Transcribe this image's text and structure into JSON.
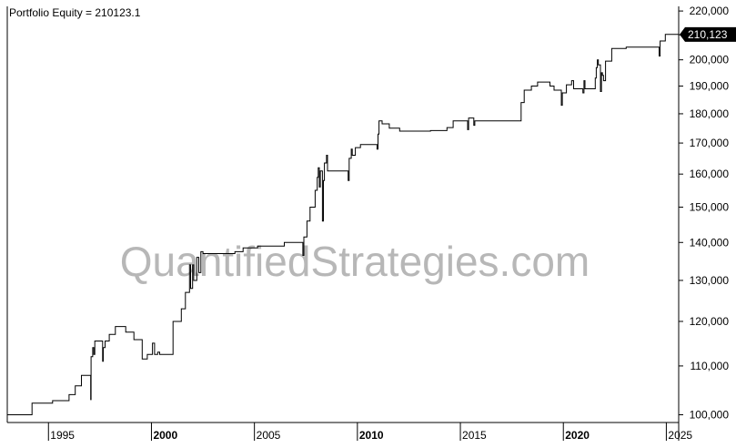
{
  "title": "Portfolio Equity = 210123.1",
  "watermark": "QuantifiedStrategies.com",
  "last_value_label": "210,123",
  "colors": {
    "line": "#000000",
    "axis": "#000000",
    "background": "#ffffff",
    "badge": "#000000",
    "badge_text": "#ffffff"
  },
  "chart_data": {
    "type": "line",
    "title": "Portfolio Equity = 210123.1",
    "xlabel": "",
    "ylabel": "",
    "y_scale": "log",
    "xlim": [
      1993.0,
      2025.6
    ],
    "ylim": [
      98500,
      222000
    ],
    "grid": false,
    "legend": "none",
    "x_ticks": [
      {
        "value": 1995,
        "label": "1995",
        "bold": false
      },
      {
        "value": 2000,
        "label": "2000",
        "bold": true
      },
      {
        "value": 2005,
        "label": "2005",
        "bold": false
      },
      {
        "value": 2010,
        "label": "2010",
        "bold": true
      },
      {
        "value": 2015,
        "label": "2015",
        "bold": false
      },
      {
        "value": 2020,
        "label": "2020",
        "bold": true
      },
      {
        "value": 2025,
        "label": "2025",
        "bold": false
      }
    ],
    "y_ticks": [
      {
        "value": 100000,
        "label": "100,000"
      },
      {
        "value": 110000,
        "label": "110,000"
      },
      {
        "value": 120000,
        "label": "120,000"
      },
      {
        "value": 130000,
        "label": "130,000"
      },
      {
        "value": 140000,
        "label": "140,000"
      },
      {
        "value": 150000,
        "label": "150,000"
      },
      {
        "value": 160000,
        "label": "160,000"
      },
      {
        "value": 170000,
        "label": "170,000"
      },
      {
        "value": 180000,
        "label": "180,000"
      },
      {
        "value": 190000,
        "label": "190,000"
      },
      {
        "value": 200000,
        "label": "200,000"
      },
      {
        "value": 210000,
        "label": "210,000"
      },
      {
        "value": 220000,
        "label": "220,000"
      }
    ],
    "series": [
      {
        "step": true,
        "points": [
          [
            1993.0,
            100000
          ],
          [
            1994.1,
            100000
          ],
          [
            1994.2,
            102300
          ],
          [
            1995.1,
            102300
          ],
          [
            1995.2,
            102800
          ],
          [
            1995.9,
            102800
          ],
          [
            1996.0,
            104000
          ],
          [
            1996.2,
            104000
          ],
          [
            1996.3,
            105800
          ],
          [
            1996.5,
            105800
          ],
          [
            1996.6,
            108000
          ],
          [
            1997.0,
            108000
          ],
          [
            1997.05,
            103000
          ],
          [
            1997.07,
            112000
          ],
          [
            1997.15,
            114000
          ],
          [
            1997.2,
            112500
          ],
          [
            1997.25,
            115500
          ],
          [
            1997.6,
            115500
          ],
          [
            1997.63,
            111000
          ],
          [
            1997.66,
            114000
          ],
          [
            1997.75,
            115500
          ],
          [
            1997.9,
            115500
          ],
          [
            1997.95,
            117000
          ],
          [
            1998.2,
            117000
          ],
          [
            1998.25,
            118800
          ],
          [
            1998.7,
            118800
          ],
          [
            1998.75,
            117500
          ],
          [
            1999.1,
            117500
          ],
          [
            1999.15,
            115800
          ],
          [
            1999.5,
            115800
          ],
          [
            1999.55,
            111500
          ],
          [
            1999.75,
            111500
          ],
          [
            1999.8,
            112500
          ],
          [
            2000.0,
            112500
          ],
          [
            2000.05,
            115000
          ],
          [
            2000.15,
            112500
          ],
          [
            2000.3,
            113000
          ],
          [
            2000.4,
            112500
          ],
          [
            2001.0,
            112500
          ],
          [
            2001.05,
            120000
          ],
          [
            2001.4,
            120000
          ],
          [
            2001.45,
            123000
          ],
          [
            2001.6,
            123000
          ],
          [
            2001.65,
            127000
          ],
          [
            2001.8,
            127000
          ],
          [
            2001.85,
            134000
          ],
          [
            2001.9,
            128000
          ],
          [
            2002.0,
            134000
          ],
          [
            2002.05,
            130000
          ],
          [
            2002.2,
            136000
          ],
          [
            2002.3,
            132000
          ],
          [
            2002.4,
            137500
          ],
          [
            2002.5,
            137000
          ],
          [
            2004.0,
            137000
          ],
          [
            2004.05,
            137500
          ],
          [
            2004.4,
            137500
          ],
          [
            2004.45,
            138500
          ],
          [
            2005.1,
            138500
          ],
          [
            2005.15,
            139000
          ],
          [
            2006.4,
            139000
          ],
          [
            2006.45,
            140000
          ],
          [
            2007.3,
            140000
          ],
          [
            2007.35,
            136500
          ],
          [
            2007.4,
            141500
          ],
          [
            2007.55,
            146000
          ],
          [
            2007.7,
            150000
          ],
          [
            2007.9,
            150000
          ],
          [
            2007.95,
            155000
          ],
          [
            2008.05,
            159000
          ],
          [
            2008.1,
            162000
          ],
          [
            2008.15,
            156000
          ],
          [
            2008.2,
            161000
          ],
          [
            2008.3,
            146000
          ],
          [
            2008.35,
            158000
          ],
          [
            2008.4,
            163500
          ],
          [
            2008.5,
            166000
          ],
          [
            2008.55,
            161000
          ],
          [
            2009.0,
            161000
          ],
          [
            2009.5,
            161000
          ],
          [
            2009.55,
            158000
          ],
          [
            2009.6,
            165000
          ],
          [
            2009.7,
            168000
          ],
          [
            2009.75,
            166000
          ],
          [
            2009.9,
            168500
          ],
          [
            2010.1,
            168500
          ],
          [
            2010.15,
            169500
          ],
          [
            2010.9,
            169500
          ],
          [
            2010.95,
            168000
          ],
          [
            2011.0,
            173000
          ],
          [
            2011.05,
            177500
          ],
          [
            2011.2,
            176500
          ],
          [
            2011.5,
            176500
          ],
          [
            2011.55,
            175000
          ],
          [
            2012.0,
            175000
          ],
          [
            2012.05,
            174000
          ],
          [
            2013.5,
            174000
          ],
          [
            2013.55,
            174200
          ],
          [
            2014.3,
            174200
          ],
          [
            2014.35,
            175200
          ],
          [
            2014.6,
            175200
          ],
          [
            2014.65,
            177500
          ],
          [
            2015.3,
            177500
          ],
          [
            2015.35,
            174500
          ],
          [
            2015.4,
            178500
          ],
          [
            2015.6,
            178500
          ],
          [
            2015.65,
            176000
          ],
          [
            2015.7,
            177500
          ],
          [
            2017.9,
            177500
          ],
          [
            2017.95,
            184000
          ],
          [
            2018.1,
            188500
          ],
          [
            2018.4,
            188500
          ],
          [
            2018.45,
            190000
          ],
          [
            2018.7,
            190000
          ],
          [
            2018.75,
            191500
          ],
          [
            2019.3,
            191500
          ],
          [
            2019.35,
            190000
          ],
          [
            2019.5,
            190000
          ],
          [
            2019.55,
            188500
          ],
          [
            2019.85,
            188500
          ],
          [
            2019.9,
            183000
          ],
          [
            2019.95,
            187500
          ],
          [
            2020.15,
            190500
          ],
          [
            2020.35,
            190500
          ],
          [
            2020.4,
            192000
          ],
          [
            2020.5,
            189000
          ],
          [
            2020.9,
            189000
          ],
          [
            2020.95,
            187500
          ],
          [
            2021.0,
            192000
          ],
          [
            2021.05,
            189000
          ],
          [
            2021.5,
            189000
          ],
          [
            2021.55,
            193000
          ],
          [
            2021.6,
            197000
          ],
          [
            2021.65,
            200000
          ],
          [
            2021.7,
            198000
          ],
          [
            2021.8,
            188000
          ],
          [
            2021.85,
            195000
          ],
          [
            2021.9,
            194000
          ],
          [
            2021.95,
            192000
          ],
          [
            2022.05,
            199500
          ],
          [
            2022.3,
            199500
          ],
          [
            2022.35,
            204500
          ],
          [
            2023.0,
            204500
          ],
          [
            2023.05,
            205000
          ],
          [
            2024.6,
            205000
          ],
          [
            2024.65,
            201500
          ],
          [
            2024.7,
            207500
          ],
          [
            2024.9,
            207500
          ],
          [
            2024.95,
            210200
          ],
          [
            2025.6,
            210123
          ]
        ]
      }
    ]
  }
}
